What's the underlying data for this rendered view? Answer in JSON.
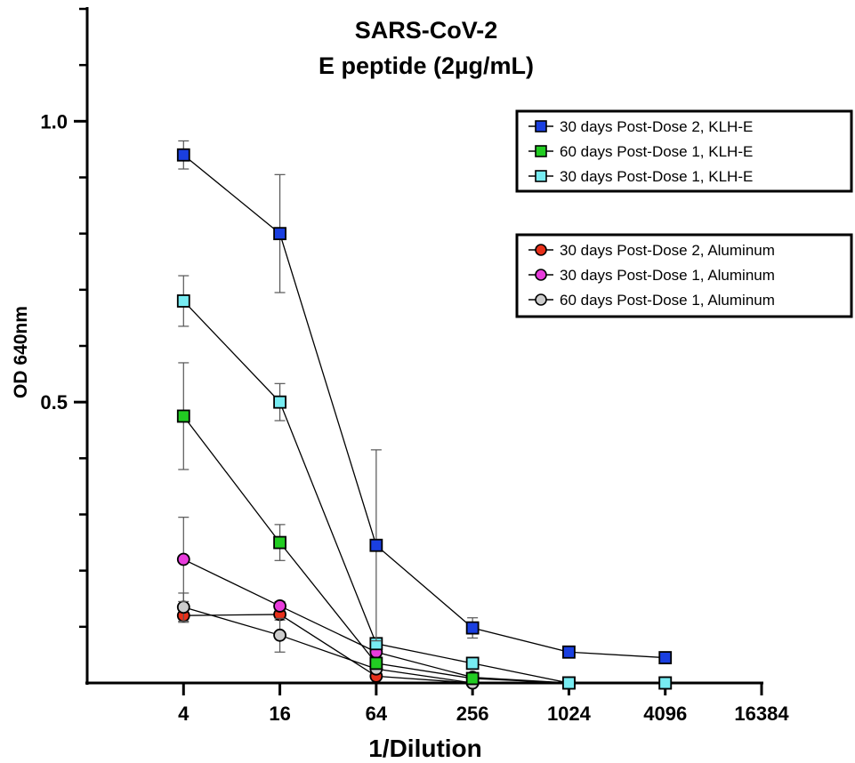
{
  "chart_data": {
    "type": "line",
    "title_lines": [
      "SARS-CoV-2",
      "E peptide (2µg/mL)"
    ],
    "xlabel": "1/Dilution",
    "ylabel": "OD 640nm",
    "x_scale": "log4",
    "x_ticks": [
      4,
      16,
      64,
      256,
      1024,
      4096,
      16384
    ],
    "x_tick_labels": [
      "4",
      "16",
      "64",
      "256",
      "1024",
      "4096",
      "16384"
    ],
    "x_range": [
      1,
      16384
    ],
    "ylim": [
      0,
      1.2
    ],
    "y_ticks_major": [
      0.5,
      1.0
    ],
    "y_tick_labels": [
      "0.5",
      "1.0"
    ],
    "y_ticks_minor": [
      0.1,
      0.2,
      0.3,
      0.4,
      0.6,
      0.7,
      0.8,
      0.9,
      1.1,
      1.2
    ],
    "grid": false,
    "series": [
      {
        "name": "30 days Post-Dose 2, KLH-E",
        "marker": "square",
        "color": "#1a3fe0",
        "x": [
          4,
          16,
          64,
          256,
          1024,
          4096
        ],
        "y": [
          0.94,
          0.8,
          0.245,
          0.098,
          0.055,
          0.045
        ],
        "err": [
          0.025,
          0.105,
          0.17,
          0.018,
          0,
          0
        ]
      },
      {
        "name": "60 days Post-Dose 1, KLH-E",
        "marker": "square",
        "color": "#22cc22",
        "x": [
          4,
          16,
          64,
          256,
          1024,
          4096
        ],
        "y": [
          0.475,
          0.25,
          0.035,
          0.008,
          0.0,
          0.0
        ],
        "err": [
          0.095,
          0.032,
          0.008,
          0,
          0,
          0
        ]
      },
      {
        "name": "30 days Post-Dose 1, KLH-E",
        "marker": "square",
        "color": "#77ecf2",
        "x": [
          4,
          16,
          64,
          256,
          1024,
          4096
        ],
        "y": [
          0.68,
          0.5,
          0.07,
          0.035,
          0.0,
          0.0
        ],
        "err": [
          0.045,
          0.033,
          0.01,
          0.008,
          0,
          0
        ]
      },
      {
        "name": "30 days Post-Dose 2, Aluminum",
        "marker": "circle",
        "color": "#e8301a",
        "x": [
          4,
          16,
          64,
          256,
          1024,
          4096
        ],
        "y": [
          0.12,
          0.122,
          0.012,
          0.0,
          0.0,
          0.0
        ],
        "err": [
          0.012,
          0.01,
          0,
          0,
          0,
          0
        ]
      },
      {
        "name": "30 days Post-Dose 1, Aluminum",
        "marker": "circle",
        "color": "#e83cdc",
        "x": [
          4,
          16,
          64,
          256,
          1024,
          4096
        ],
        "y": [
          0.22,
          0.137,
          0.055,
          0.01,
          0.0,
          0.0
        ],
        "err": [
          0.075,
          0.008,
          0,
          0,
          0,
          0
        ]
      },
      {
        "name": "60 days Post-Dose 1, Aluminum",
        "marker": "circle",
        "color": "#cccccc",
        "x": [
          4,
          16,
          64,
          256,
          1024,
          4096
        ],
        "y": [
          0.135,
          0.085,
          0.025,
          0.0,
          0.0,
          0.0
        ],
        "err": [
          0.025,
          0.03,
          0,
          0,
          0,
          0
        ]
      }
    ],
    "legends": [
      {
        "position": "top-right",
        "series": [
          0,
          1,
          2
        ]
      },
      {
        "position": "right",
        "series": [
          3,
          4,
          5
        ]
      }
    ]
  }
}
